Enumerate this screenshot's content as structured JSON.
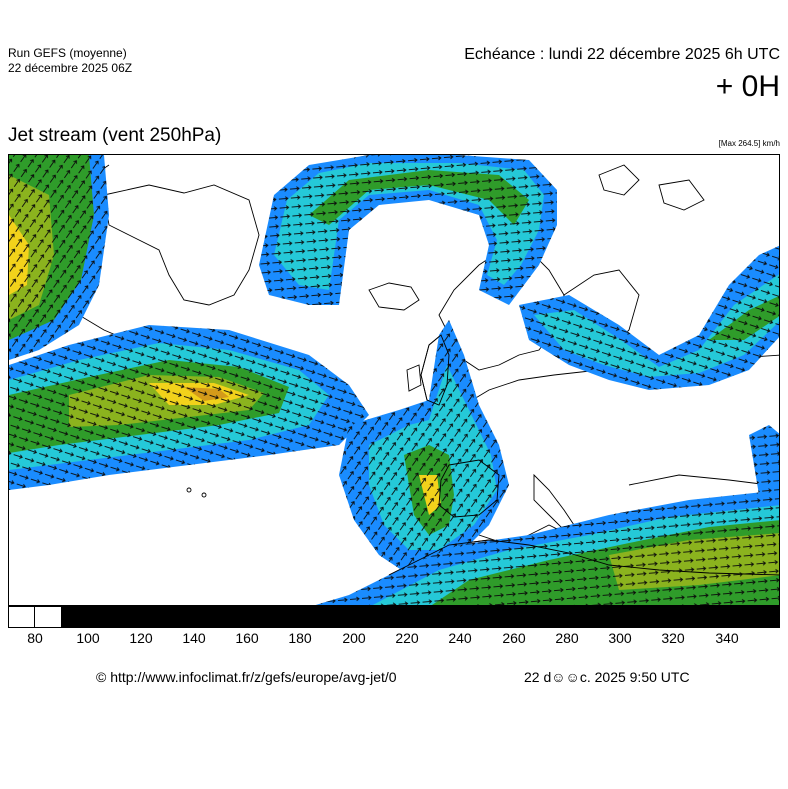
{
  "header": {
    "run_name": "Run GEFS (moyenne)",
    "run_date": "22 décembre 2025 06Z",
    "valid_time": "Echéance : lundi 22 décembre 2025 6h UTC",
    "lead_time": "+ 0H"
  },
  "map": {
    "title": "Jet stream (vent 250hPa)",
    "max_note": "[Max 264.5] km/h",
    "region": "europe",
    "parameter": "avg-jet"
  },
  "colorbar": {
    "ticks": [
      "80",
      "100",
      "120",
      "140",
      "160",
      "180",
      "200",
      "220",
      "240",
      "260",
      "280",
      "300",
      "320",
      "340"
    ],
    "colors": {
      "below": "#ffffff",
      "main": "#000000",
      "coast": "#000000",
      "slow": "#1a8cff",
      "mid": "#25c9d8",
      "fast1": "#2f9c2a",
      "fast2": "#8bb31e",
      "fast3": "#f2d21b",
      "fast4": "#d49a1a"
    }
  },
  "footer": {
    "copyright": "© http://www.infoclimat.fr/z/gefs/europe/avg-jet/0",
    "generated": "22 d☺☺c. 2025  9:50 UTC"
  }
}
